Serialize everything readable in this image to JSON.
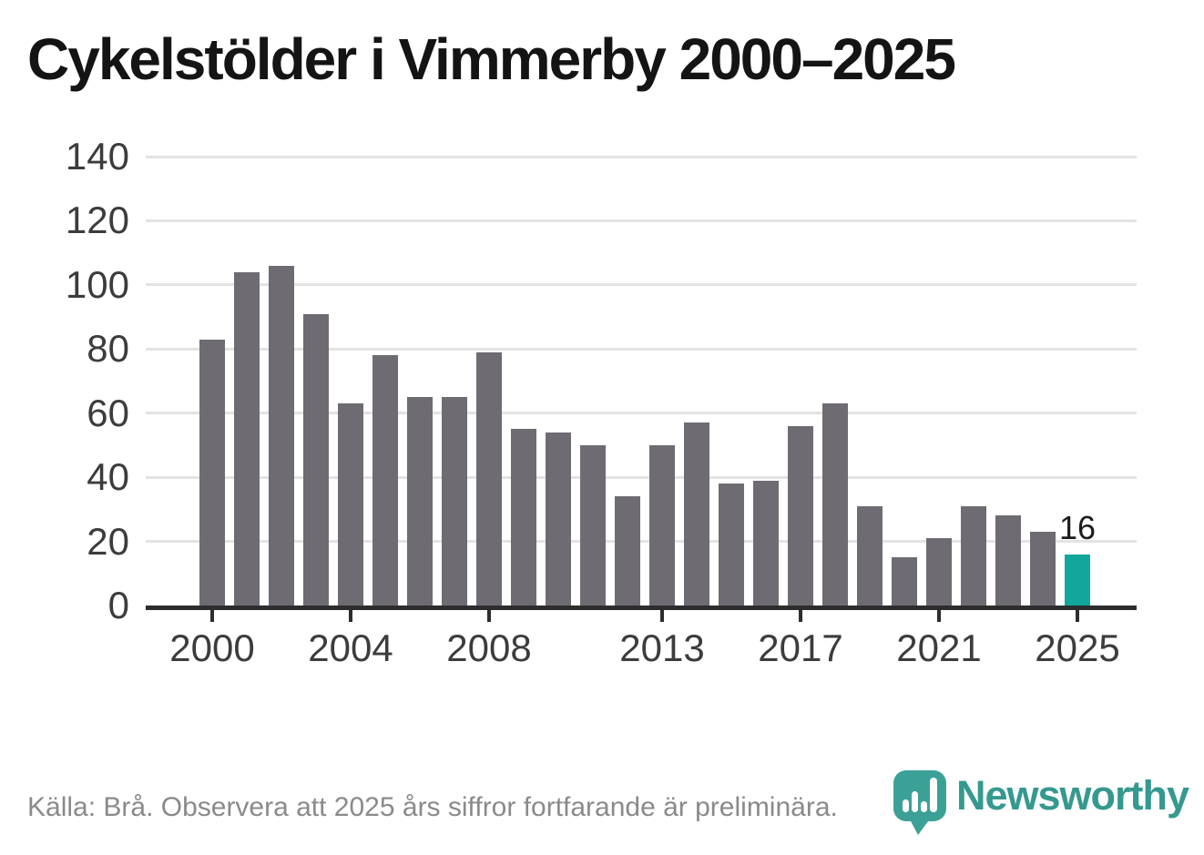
{
  "title": "Cykelstölder i Vimmerby 2000–2025",
  "footer": {
    "source_text": "Källa: Brå. Observera att 2025 års siffror fortfarande är preliminära."
  },
  "branding": {
    "logo_text": "Newsworthy",
    "logo_icon": "newsworthy-pin-barchart-icon",
    "logo_color": "#35998f"
  },
  "colors": {
    "bar_default": "#6f6b73",
    "bar_highlight": "#11a79d",
    "gridline": "#e3e3e3",
    "axis": "#2d2d2d",
    "title_text": "#141414",
    "tick_label": "#3c3c3c",
    "footer_text": "#8a8a8a"
  },
  "chart_data": {
    "type": "bar",
    "title": "Cykelstölder i Vimmerby 2000–2025",
    "categories": [
      "2000",
      "2001",
      "2002",
      "2003",
      "2004",
      "2005",
      "2006",
      "2007",
      "2008",
      "2009",
      "2010",
      "2011",
      "2012",
      "2013",
      "2014",
      "2015",
      "2016",
      "2017",
      "2018",
      "2019",
      "2020",
      "2021",
      "2022",
      "2023",
      "2024",
      "2025"
    ],
    "values": [
      83,
      104,
      106,
      91,
      63,
      78,
      65,
      65,
      79,
      55,
      54,
      50,
      34,
      50,
      57,
      38,
      39,
      56,
      63,
      31,
      15,
      21,
      31,
      28,
      23,
      16
    ],
    "highlight_index": 25,
    "highlight_label": "16",
    "x_ticks": [
      {
        "label": "2000",
        "index": 0
      },
      {
        "label": "2004",
        "index": 4
      },
      {
        "label": "2008",
        "index": 8
      },
      {
        "label": "2013",
        "index": 13
      },
      {
        "label": "2017",
        "index": 17
      },
      {
        "label": "2021",
        "index": 21
      },
      {
        "label": "2025",
        "index": 25
      }
    ],
    "y_ticks": [
      0,
      20,
      40,
      60,
      80,
      100,
      120,
      140
    ],
    "ylim": [
      0,
      140
    ],
    "xlabel": "",
    "ylabel": "",
    "grid": "horizontal",
    "legend": "none"
  }
}
